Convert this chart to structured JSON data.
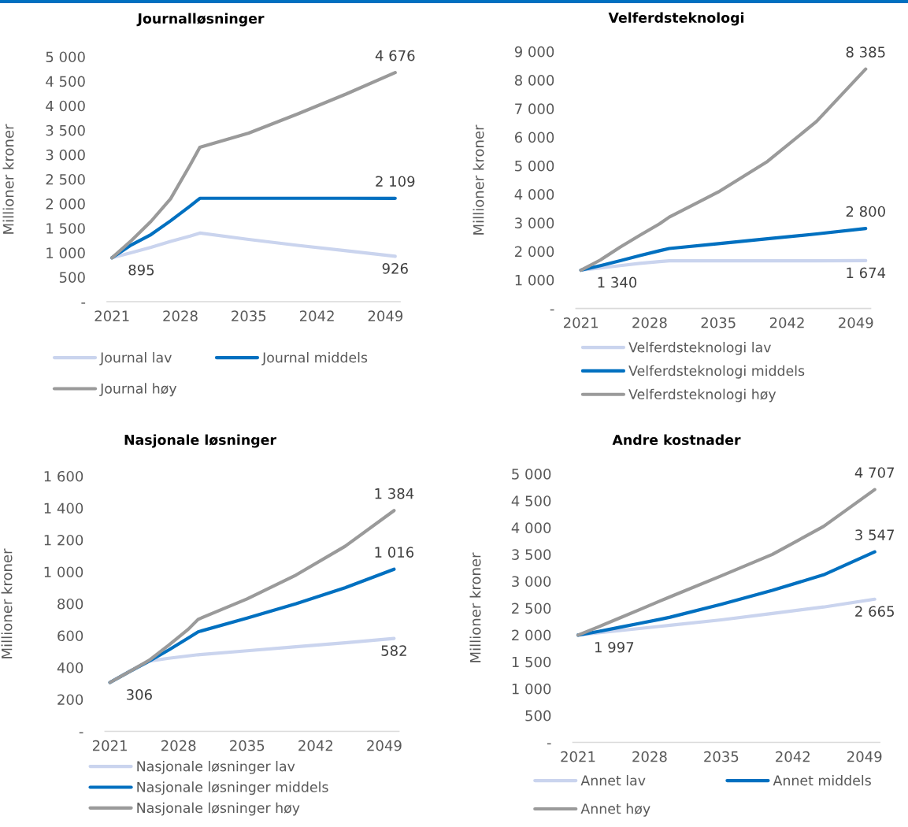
{
  "chart_data": [
    {
      "type": "line",
      "title": "Journalløsninger",
      "ylabel": "Millioner kroner",
      "legend": "bottom",
      "x": [
        2021,
        2023,
        2025,
        2027,
        2029,
        2030,
        2035,
        2040,
        2045,
        2050
      ],
      "xlim": [
        2020.5,
        2050.5
      ],
      "xticks": [
        2021,
        2028,
        2035,
        2042,
        2049
      ],
      "ylim": [
        0,
        5000
      ],
      "yticks": [
        {
          "value": 0,
          "label": "-"
        },
        500,
        {
          "value": 1000,
          "label": "1 000"
        },
        {
          "value": 1500,
          "label": "1 500"
        },
        {
          "value": 2000,
          "label": "2 000"
        },
        {
          "value": 2500,
          "label": "2 500"
        },
        {
          "value": 3000,
          "label": "3 000"
        },
        {
          "value": 3500,
          "label": "3 500"
        },
        {
          "value": 4000,
          "label": "4 000"
        },
        {
          "value": 4500,
          "label": "4 500"
        },
        {
          "value": 5000,
          "label": "5 000"
        }
      ],
      "series": [
        {
          "name": "Journal lav",
          "color": "#cad4ee",
          "values": [
            895,
            1000,
            1110,
            1230,
            1340,
            1400,
            1270,
            1150,
            1040,
            926
          ],
          "value_labels": [
            "895",
            null,
            null,
            null,
            null,
            null,
            null,
            null,
            null,
            "926"
          ]
        },
        {
          "name": "Journal middels",
          "color": "#0070c0",
          "values": [
            895,
            1160,
            1370,
            1650,
            1950,
            2110,
            2110,
            2110,
            2110,
            2109
          ],
          "value_labels": [
            null,
            null,
            null,
            null,
            null,
            null,
            null,
            null,
            null,
            "2 109"
          ]
        },
        {
          "name": "Journal høy",
          "color": "#9a9a9a",
          "values": [
            895,
            1250,
            1640,
            2100,
            2790,
            3150,
            3440,
            3830,
            4240,
            4676
          ],
          "value_labels": [
            null,
            null,
            null,
            null,
            null,
            null,
            null,
            null,
            null,
            "4 676"
          ]
        }
      ]
    },
    {
      "type": "line",
      "title": "Velferdsteknologi",
      "ylabel": "Millioner kroner",
      "legend": "bottom",
      "x": [
        2021,
        2023,
        2025,
        2027,
        2029,
        2030,
        2035,
        2040,
        2045,
        2050
      ],
      "xlim": [
        2020.5,
        2050.5
      ],
      "xticks": [
        2021,
        2028,
        2035,
        2042,
        2049
      ],
      "ylim": [
        0,
        9000
      ],
      "yticks": [
        {
          "value": 0,
          "label": "-"
        },
        {
          "value": 1000,
          "label": "1 000"
        },
        {
          "value": 2000,
          "label": "2 000"
        },
        {
          "value": 3000,
          "label": "3 000"
        },
        {
          "value": 4000,
          "label": "4 000"
        },
        {
          "value": 5000,
          "label": "5 000"
        },
        {
          "value": 6000,
          "label": "6 000"
        },
        {
          "value": 7000,
          "label": "7 000"
        },
        {
          "value": 8000,
          "label": "8 000"
        },
        {
          "value": 9000,
          "label": "9 000"
        }
      ],
      "series": [
        {
          "name": "Velferdsteknologi lav",
          "color": "#cad4ee",
          "values": [
            1340,
            1420,
            1500,
            1580,
            1640,
            1670,
            1670,
            1670,
            1670,
            1674
          ],
          "value_labels": [
            "1 340",
            null,
            null,
            null,
            null,
            null,
            null,
            null,
            null,
            "1 674"
          ]
        },
        {
          "name": "Velferdsteknologi middels",
          "color": "#0070c0",
          "values": [
            1340,
            1500,
            1670,
            1850,
            2020,
            2100,
            2270,
            2440,
            2610,
            2800
          ],
          "value_labels": [
            null,
            null,
            null,
            null,
            null,
            null,
            null,
            null,
            null,
            "2 800"
          ]
        },
        {
          "name": "Velferdsteknologi høy",
          "color": "#9a9a9a",
          "values": [
            1340,
            1700,
            2150,
            2560,
            2960,
            3200,
            4080,
            5150,
            6550,
            8385
          ],
          "value_labels": [
            null,
            null,
            null,
            null,
            null,
            null,
            null,
            null,
            null,
            "8 385"
          ]
        }
      ]
    },
    {
      "type": "line",
      "title": "Nasjonale løsninger",
      "ylabel": "Millioner kroner",
      "legend": "bottom",
      "x": [
        2021,
        2023,
        2025,
        2027,
        2029,
        2030,
        2035,
        2040,
        2045,
        2050
      ],
      "xlim": [
        2020.5,
        2050.5
      ],
      "xticks": [
        2021,
        2028,
        2035,
        2042,
        2049
      ],
      "ylim": [
        0,
        1600
      ],
      "yticks": [
        {
          "value": 0,
          "label": "-"
        },
        200,
        400,
        600,
        800,
        {
          "value": 1000,
          "label": "1 000"
        },
        {
          "value": 1200,
          "label": "1 200"
        },
        {
          "value": 1400,
          "label": "1 400"
        },
        {
          "value": 1600,
          "label": "1 600"
        }
      ],
      "series": [
        {
          "name": "Nasjonale løsninger lav",
          "color": "#cad4ee",
          "values": [
            306,
            375,
            440,
            458,
            473,
            480,
            505,
            530,
            555,
            582
          ],
          "value_labels": [
            "306",
            null,
            null,
            null,
            null,
            null,
            null,
            null,
            null,
            "582"
          ]
        },
        {
          "name": "Nasjonale løsninger middels",
          "color": "#0070c0",
          "values": [
            306,
            375,
            440,
            510,
            585,
            624,
            710,
            800,
            900,
            1016
          ],
          "value_labels": [
            null,
            null,
            null,
            null,
            null,
            null,
            null,
            null,
            null,
            "1 016"
          ]
        },
        {
          "name": "Nasjonale løsninger høy",
          "color": "#9a9a9a",
          "values": [
            306,
            375,
            445,
            540,
            640,
            702,
            830,
            980,
            1160,
            1384
          ],
          "value_labels": [
            null,
            null,
            null,
            null,
            null,
            null,
            null,
            null,
            null,
            "1 384"
          ]
        }
      ]
    },
    {
      "type": "line",
      "title": "Andre kostnader",
      "ylabel": "Millioner kroner",
      "legend": "bottom",
      "x": [
        2021,
        2023,
        2025,
        2027,
        2029,
        2030,
        2035,
        2040,
        2045,
        2050
      ],
      "xlim": [
        2020.5,
        2050.5
      ],
      "xticks": [
        2021,
        2028,
        2035,
        2042,
        2049
      ],
      "ylim": [
        0,
        5000
      ],
      "yticks": [
        {
          "value": 0,
          "label": "-"
        },
        500,
        {
          "value": 1000,
          "label": "1 000"
        },
        {
          "value": 1500,
          "label": "1 500"
        },
        {
          "value": 2000,
          "label": "2 000"
        },
        {
          "value": 2500,
          "label": "2 500"
        },
        {
          "value": 3000,
          "label": "3 000"
        },
        {
          "value": 3500,
          "label": "3 500"
        },
        {
          "value": 4000,
          "label": "4 000"
        },
        {
          "value": 4500,
          "label": "4 500"
        },
        {
          "value": 5000,
          "label": "5 000"
        }
      ],
      "series": [
        {
          "name": "Annet lav",
          "color": "#cad4ee",
          "values": [
            1997,
            2040,
            2080,
            2120,
            2160,
            2180,
            2280,
            2400,
            2520,
            2665
          ],
          "value_labels": [
            "1 997",
            null,
            null,
            null,
            null,
            null,
            null,
            null,
            null,
            "2 665"
          ]
        },
        {
          "name": "Annet middels",
          "color": "#0070c0",
          "values": [
            1997,
            2065,
            2140,
            2215,
            2290,
            2330,
            2570,
            2830,
            3120,
            3547
          ],
          "value_labels": [
            null,
            null,
            null,
            null,
            null,
            null,
            null,
            null,
            null,
            "3 547"
          ]
        },
        {
          "name": "Annet høy",
          "color": "#9a9a9a",
          "values": [
            1997,
            2150,
            2310,
            2470,
            2630,
            2710,
            3100,
            3500,
            4020,
            4707
          ],
          "value_labels": [
            null,
            null,
            null,
            null,
            null,
            null,
            null,
            null,
            null,
            "4 707"
          ]
        }
      ]
    }
  ]
}
